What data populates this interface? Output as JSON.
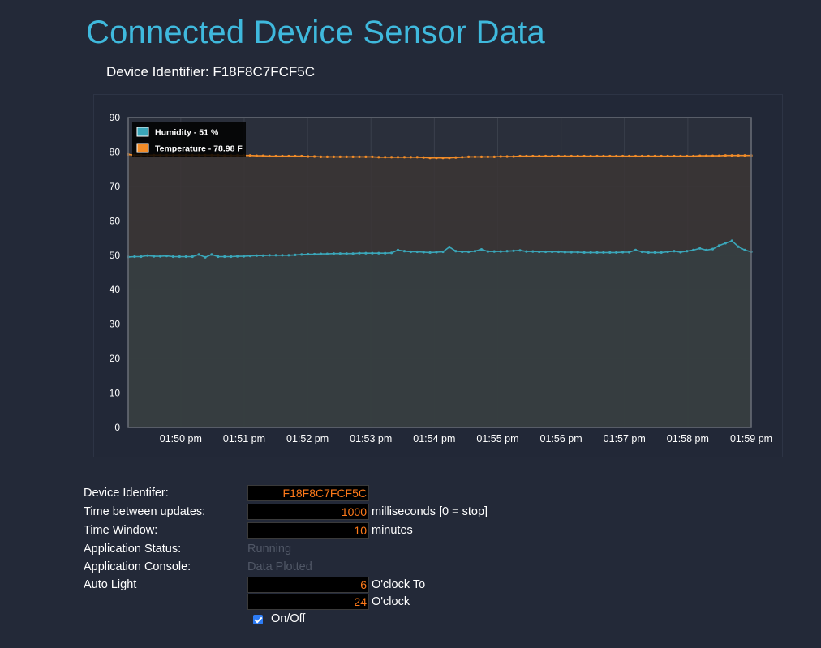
{
  "page": {
    "title": "Connected Device Sensor Data",
    "device_line_prefix": "Device Identifier: ",
    "device_id": "F18F8C7FCF5C"
  },
  "colors": {
    "title": "#3fb9dd",
    "humidity": "#3aa6b9",
    "temperature": "#f28c28",
    "field_text": "#ff7a1a",
    "humidity_fill": "#363f42",
    "temperature_fill": "#3b3535"
  },
  "chart_data": {
    "type": "area",
    "title": "",
    "xlabel": "",
    "ylabel": "",
    "ylim": [
      0,
      90
    ],
    "yticks": [
      "0",
      "10",
      "20",
      "30",
      "40",
      "50",
      "60",
      "70",
      "80",
      "90"
    ],
    "xticks": [
      "01:50 pm",
      "01:51 pm",
      "01:52 pm",
      "01:53 pm",
      "01:54 pm",
      "01:55 pm",
      "01:56 pm",
      "01:57 pm",
      "01:58 pm",
      "01:59 pm"
    ],
    "xlim_minutes": [
      49.17,
      59.0
    ],
    "grid": true,
    "legend_position": "top-left",
    "series": [
      {
        "name": "Humidity - 51 %",
        "values": [
          49.5,
          49.6,
          49.6,
          49.9,
          49.7,
          49.7,
          49.8,
          49.6,
          49.6,
          49.6,
          49.6,
          50.2,
          49.4,
          50.2,
          49.6,
          49.6,
          49.6,
          49.7,
          49.7,
          49.8,
          49.9,
          49.9,
          50.0,
          50.0,
          50.0,
          50.0,
          50.1,
          50.2,
          50.3,
          50.3,
          50.4,
          50.4,
          50.5,
          50.5,
          50.5,
          50.5,
          50.6,
          50.6,
          50.6,
          50.6,
          50.6,
          50.7,
          51.5,
          51.2,
          51.0,
          51.0,
          50.9,
          50.8,
          50.9,
          51.0,
          52.4,
          51.2,
          51.0,
          51.0,
          51.2,
          51.7,
          51.1,
          51.1,
          51.1,
          51.2,
          51.3,
          51.4,
          51.1,
          51.1,
          51.0,
          51.0,
          51.0,
          51.0,
          50.9,
          50.9,
          50.9,
          50.8,
          50.8,
          50.8,
          50.8,
          50.8,
          50.8,
          50.9,
          50.9,
          51.5,
          51.0,
          50.8,
          50.8,
          50.8,
          51.0,
          51.2,
          50.9,
          51.2,
          51.5,
          52.0,
          51.5,
          51.8,
          52.8,
          53.5,
          54.2,
          52.5,
          51.5,
          51.0
        ]
      },
      {
        "name": "Temperature - 78.98 F",
        "values": [
          79.3,
          79.1,
          79.1,
          79.1,
          79.1,
          79.1,
          79.1,
          79.1,
          79.1,
          79.1,
          79.1,
          79.1,
          79.1,
          79.1,
          79.1,
          79.0,
          79.0,
          79.0,
          79.0,
          79.0,
          78.9,
          78.9,
          78.8,
          78.8,
          78.8,
          78.8,
          78.8,
          78.8,
          78.7,
          78.7,
          78.6,
          78.6,
          78.6,
          78.6,
          78.6,
          78.6,
          78.6,
          78.6,
          78.6,
          78.5,
          78.5,
          78.5,
          78.5,
          78.5,
          78.5,
          78.5,
          78.4,
          78.3,
          78.3,
          78.3,
          78.3,
          78.4,
          78.5,
          78.6,
          78.6,
          78.6,
          78.6,
          78.6,
          78.7,
          78.7,
          78.7,
          78.8,
          78.8,
          78.8,
          78.8,
          78.8,
          78.8,
          78.8,
          78.8,
          78.8,
          78.8,
          78.8,
          78.8,
          78.8,
          78.8,
          78.8,
          78.8,
          78.8,
          78.8,
          78.8,
          78.8,
          78.8,
          78.8,
          78.8,
          78.8,
          78.8,
          78.8,
          78.8,
          78.8,
          78.9,
          78.9,
          78.9,
          78.9,
          79.0,
          79.0,
          79.0,
          79.0,
          79.0
        ]
      }
    ]
  },
  "form": {
    "device_label": "Device Identifer:",
    "device_value": "F18F8C7FCF5C",
    "update_label": "Time between updates:",
    "update_value": "1000",
    "update_unit": "milliseconds [0 = stop]",
    "window_label": "Time Window:",
    "window_value": "10",
    "window_unit": "minutes",
    "status_label": "Application Status:",
    "status_value": "Running",
    "console_label": "Application Console:",
    "console_value": "Data Plotted",
    "autolight_label": "Auto Light",
    "autolight_from": "6",
    "autolight_from_unit": "O'clock To",
    "autolight_to": "24",
    "autolight_to_unit": "O'clock",
    "onoff_label": "On/Off",
    "onoff_checked": true
  }
}
